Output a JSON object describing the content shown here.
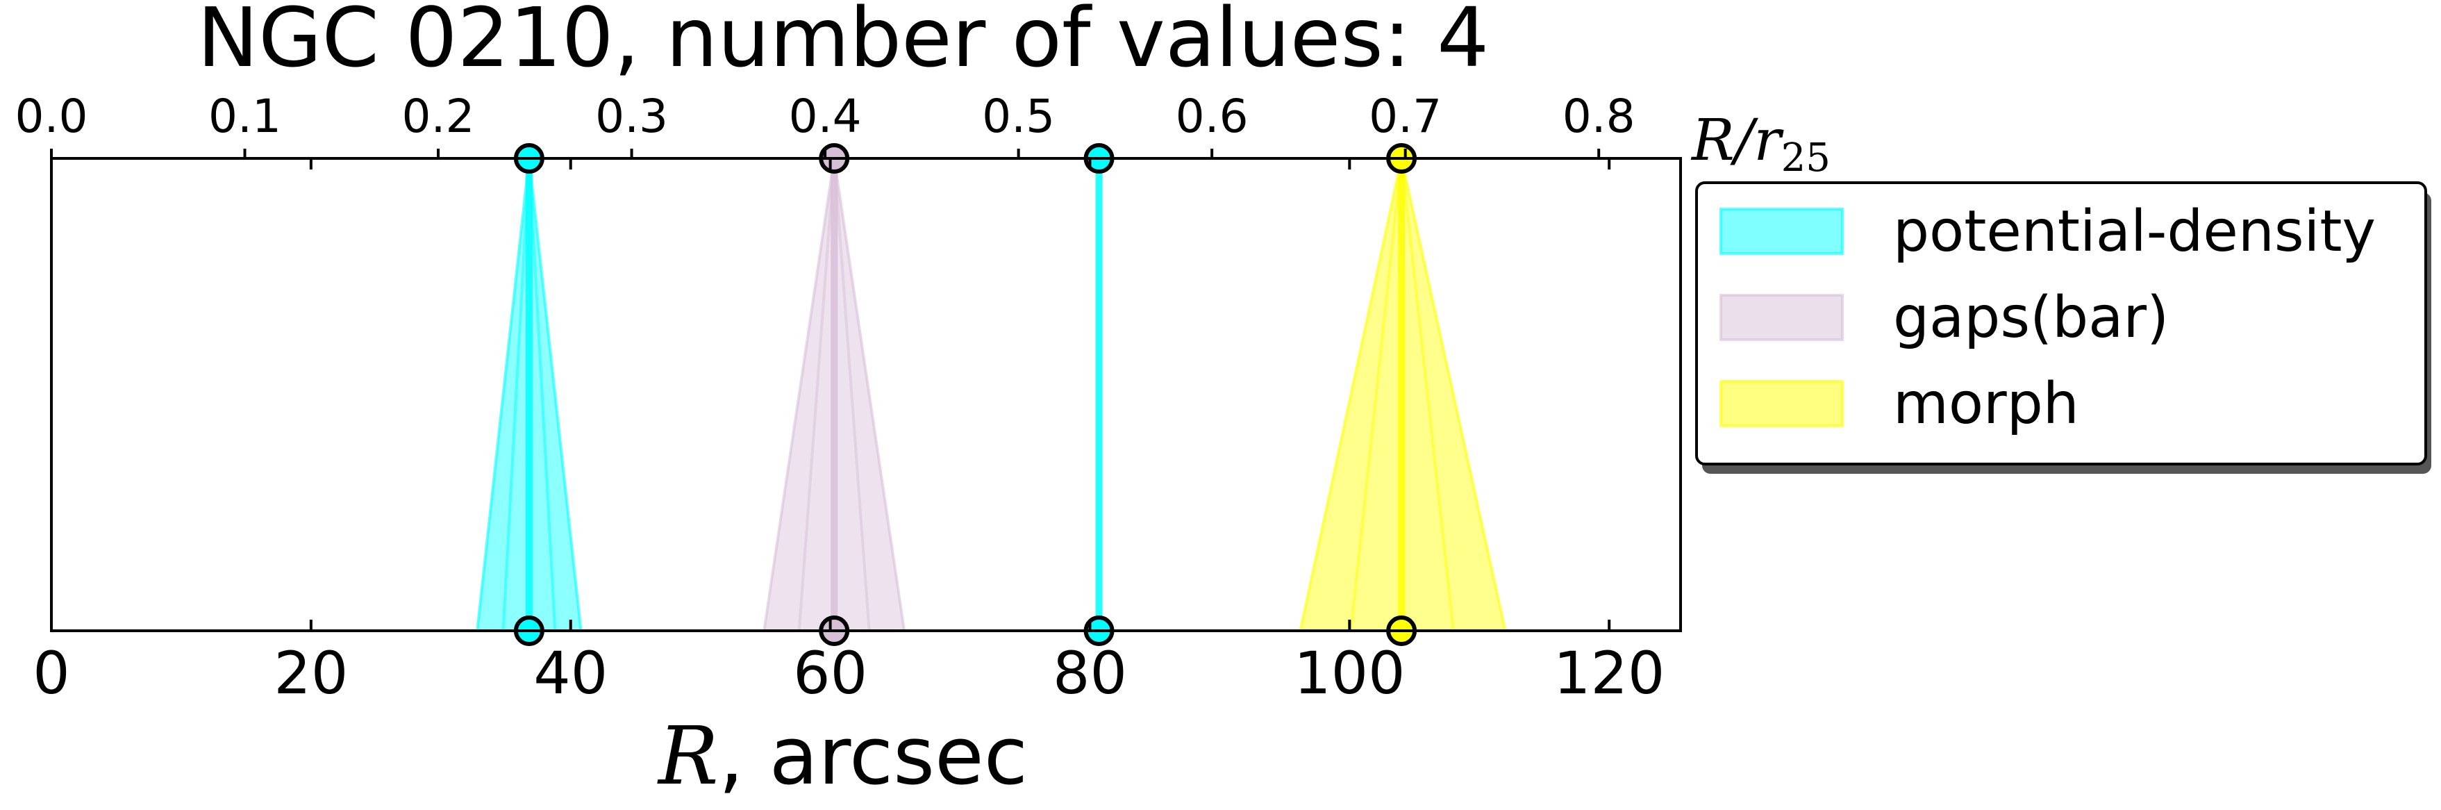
{
  "chart_data": {
    "type": "line",
    "title": "NGC 0210, number of values: 4",
    "xlabel_var": "R",
    "xlabel_unit": ", arcsec",
    "top_xlabel_var": "R/r",
    "top_xlabel_sub": "25",
    "xlim": [
      0,
      125.5
    ],
    "x_ticks": [
      0,
      20,
      40,
      60,
      80,
      100,
      120
    ],
    "x_tick_labels": [
      "0",
      "20",
      "40",
      "60",
      "80",
      "100",
      "120"
    ],
    "top_xlim": [
      0,
      0.8423
    ],
    "top_ticks": [
      0.0,
      0.1,
      0.2,
      0.3,
      0.4,
      0.5,
      0.6,
      0.7,
      0.8
    ],
    "top_tick_labels": [
      "0.0",
      "0.1",
      "0.2",
      "0.3",
      "0.4",
      "0.5",
      "0.6",
      "0.7",
      "0.8"
    ],
    "grid": false,
    "legend_position": "right, outside plot",
    "series": [
      {
        "name": "potential-density",
        "color": "#00FFFF",
        "values": [
          {
            "r": 36.8,
            "r_min": 32.8,
            "r_max": 40.8
          },
          {
            "r": 80.7,
            "r_min": 80.7,
            "r_max": 80.7
          }
        ]
      },
      {
        "name": "gaps(bar)",
        "color": "#D8BFD8",
        "values": [
          {
            "r": 60.3,
            "r_min": 54.9,
            "r_max": 65.7
          }
        ]
      },
      {
        "name": "morph",
        "color": "#FFFF00",
        "values": [
          {
            "r": 104.0,
            "r_min": 96.2,
            "r_max": 112.0
          }
        ]
      }
    ]
  }
}
